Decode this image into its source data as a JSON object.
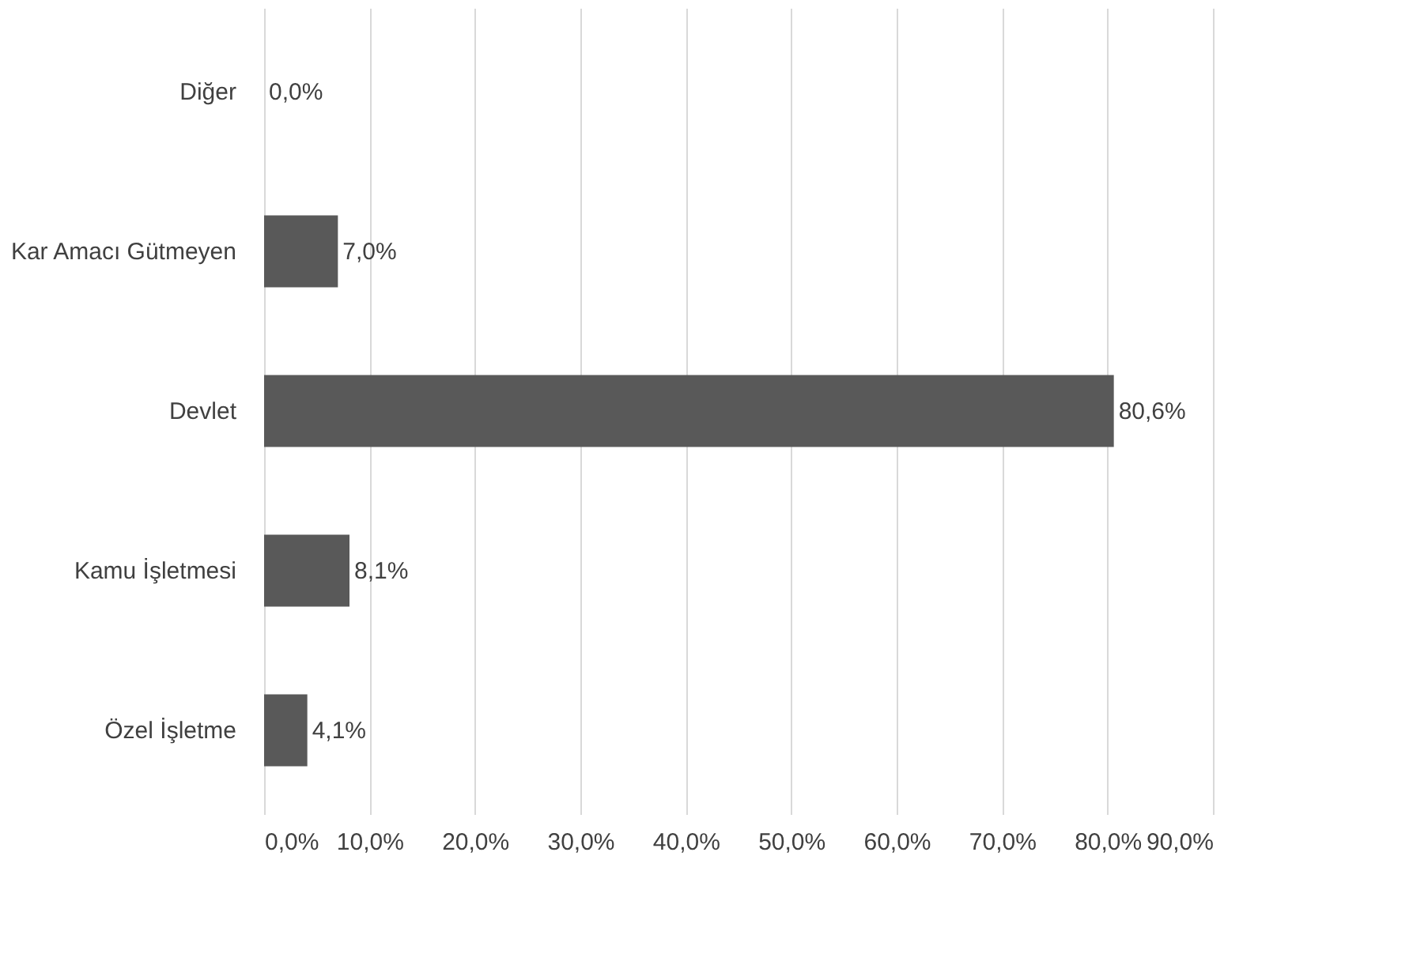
{
  "chart_data": {
    "type": "bar",
    "orientation": "horizontal",
    "categories": [
      "Diğer",
      "Kar Amacı Gütmeyen",
      "Devlet",
      "Kamu İşletmesi",
      "Özel İşletme"
    ],
    "values": [
      0.0,
      7.0,
      80.6,
      8.1,
      4.1
    ],
    "value_labels": [
      "0,0%",
      "7,0%",
      "80,6%",
      "8,1%",
      "4,1%"
    ],
    "color": "#595959",
    "xlim": [
      0,
      90
    ],
    "xticks": [
      {
        "value": 0,
        "label": "0,0%"
      },
      {
        "value": 10,
        "label": "10,0%"
      },
      {
        "value": 20,
        "label": "20,0%"
      },
      {
        "value": 30,
        "label": "30,0%"
      },
      {
        "value": 40,
        "label": "40,0%"
      },
      {
        "value": 50,
        "label": "50,0%"
      },
      {
        "value": 60,
        "label": "60,0%"
      },
      {
        "value": 70,
        "label": "70,0%"
      },
      {
        "value": 80,
        "label": "80,0%"
      },
      {
        "value": 90,
        "label": "90,0%"
      }
    ],
    "grid": "x"
  }
}
